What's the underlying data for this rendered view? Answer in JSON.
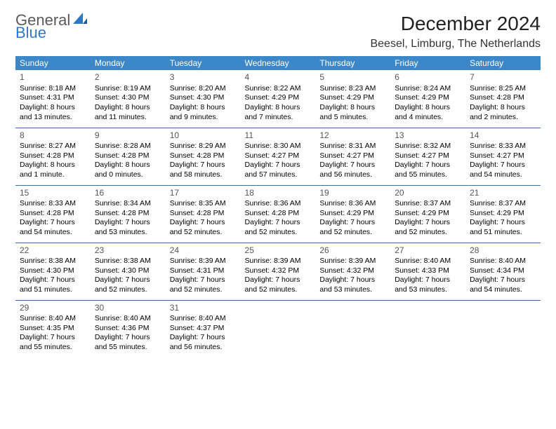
{
  "logo": {
    "word1": "General",
    "word2": "Blue"
  },
  "title": "December 2024",
  "location": "Beesel, Limburg, The Netherlands",
  "colors": {
    "header_bg": "#3b87c8",
    "header_text": "#ffffff",
    "row_border": "#3b6ea3",
    "logo_gray": "#5a5a5a",
    "logo_blue": "#2f78c4"
  },
  "dayHeaders": [
    "Sunday",
    "Monday",
    "Tuesday",
    "Wednesday",
    "Thursday",
    "Friday",
    "Saturday"
  ],
  "weeks": [
    [
      {
        "n": "1",
        "sr": "8:18 AM",
        "ss": "4:31 PM",
        "dl": "8 hours and 13 minutes."
      },
      {
        "n": "2",
        "sr": "8:19 AM",
        "ss": "4:30 PM",
        "dl": "8 hours and 11 minutes."
      },
      {
        "n": "3",
        "sr": "8:20 AM",
        "ss": "4:30 PM",
        "dl": "8 hours and 9 minutes."
      },
      {
        "n": "4",
        "sr": "8:22 AM",
        "ss": "4:29 PM",
        "dl": "8 hours and 7 minutes."
      },
      {
        "n": "5",
        "sr": "8:23 AM",
        "ss": "4:29 PM",
        "dl": "8 hours and 5 minutes."
      },
      {
        "n": "6",
        "sr": "8:24 AM",
        "ss": "4:29 PM",
        "dl": "8 hours and 4 minutes."
      },
      {
        "n": "7",
        "sr": "8:25 AM",
        "ss": "4:28 PM",
        "dl": "8 hours and 2 minutes."
      }
    ],
    [
      {
        "n": "8",
        "sr": "8:27 AM",
        "ss": "4:28 PM",
        "dl": "8 hours and 1 minute."
      },
      {
        "n": "9",
        "sr": "8:28 AM",
        "ss": "4:28 PM",
        "dl": "8 hours and 0 minutes."
      },
      {
        "n": "10",
        "sr": "8:29 AM",
        "ss": "4:28 PM",
        "dl": "7 hours and 58 minutes."
      },
      {
        "n": "11",
        "sr": "8:30 AM",
        "ss": "4:27 PM",
        "dl": "7 hours and 57 minutes."
      },
      {
        "n": "12",
        "sr": "8:31 AM",
        "ss": "4:27 PM",
        "dl": "7 hours and 56 minutes."
      },
      {
        "n": "13",
        "sr": "8:32 AM",
        "ss": "4:27 PM",
        "dl": "7 hours and 55 minutes."
      },
      {
        "n": "14",
        "sr": "8:33 AM",
        "ss": "4:27 PM",
        "dl": "7 hours and 54 minutes."
      }
    ],
    [
      {
        "n": "15",
        "sr": "8:33 AM",
        "ss": "4:28 PM",
        "dl": "7 hours and 54 minutes."
      },
      {
        "n": "16",
        "sr": "8:34 AM",
        "ss": "4:28 PM",
        "dl": "7 hours and 53 minutes."
      },
      {
        "n": "17",
        "sr": "8:35 AM",
        "ss": "4:28 PM",
        "dl": "7 hours and 52 minutes."
      },
      {
        "n": "18",
        "sr": "8:36 AM",
        "ss": "4:28 PM",
        "dl": "7 hours and 52 minutes."
      },
      {
        "n": "19",
        "sr": "8:36 AM",
        "ss": "4:29 PM",
        "dl": "7 hours and 52 minutes."
      },
      {
        "n": "20",
        "sr": "8:37 AM",
        "ss": "4:29 PM",
        "dl": "7 hours and 52 minutes."
      },
      {
        "n": "21",
        "sr": "8:37 AM",
        "ss": "4:29 PM",
        "dl": "7 hours and 51 minutes."
      }
    ],
    [
      {
        "n": "22",
        "sr": "8:38 AM",
        "ss": "4:30 PM",
        "dl": "7 hours and 51 minutes."
      },
      {
        "n": "23",
        "sr": "8:38 AM",
        "ss": "4:30 PM",
        "dl": "7 hours and 52 minutes."
      },
      {
        "n": "24",
        "sr": "8:39 AM",
        "ss": "4:31 PM",
        "dl": "7 hours and 52 minutes."
      },
      {
        "n": "25",
        "sr": "8:39 AM",
        "ss": "4:32 PM",
        "dl": "7 hours and 52 minutes."
      },
      {
        "n": "26",
        "sr": "8:39 AM",
        "ss": "4:32 PM",
        "dl": "7 hours and 53 minutes."
      },
      {
        "n": "27",
        "sr": "8:40 AM",
        "ss": "4:33 PM",
        "dl": "7 hours and 53 minutes."
      },
      {
        "n": "28",
        "sr": "8:40 AM",
        "ss": "4:34 PM",
        "dl": "7 hours and 54 minutes."
      }
    ],
    [
      {
        "n": "29",
        "sr": "8:40 AM",
        "ss": "4:35 PM",
        "dl": "7 hours and 55 minutes."
      },
      {
        "n": "30",
        "sr": "8:40 AM",
        "ss": "4:36 PM",
        "dl": "7 hours and 55 minutes."
      },
      {
        "n": "31",
        "sr": "8:40 AM",
        "ss": "4:37 PM",
        "dl": "7 hours and 56 minutes."
      },
      null,
      null,
      null,
      null
    ]
  ],
  "labels": {
    "sunrise": "Sunrise: ",
    "sunset": "Sunset: ",
    "daylight": "Daylight: "
  }
}
